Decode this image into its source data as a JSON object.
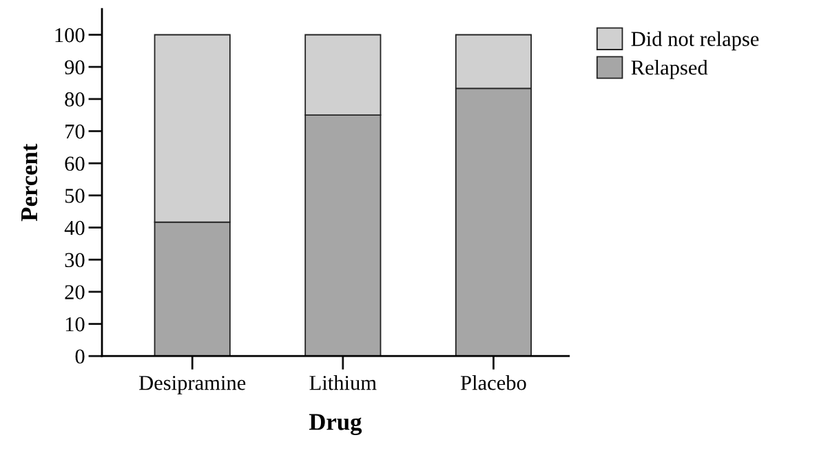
{
  "chart_data": {
    "type": "bar",
    "stacked": true,
    "xlabel": "Drug",
    "ylabel": "Percent",
    "categories": [
      "Desipramine",
      "Lithium",
      "Placebo"
    ],
    "series": [
      {
        "name": "Relapsed",
        "color": "#a6a6a6",
        "values": [
          41.7,
          75,
          83.3
        ]
      },
      {
        "name": "Did not relapse",
        "color": "#d0d0d0",
        "values": [
          58.3,
          25,
          16.7
        ]
      }
    ],
    "ylim": [
      0,
      108
    ],
    "yticks": [
      0,
      10,
      20,
      30,
      40,
      50,
      60,
      70,
      80,
      90,
      100
    ],
    "grid": false,
    "legend": "top right"
  }
}
